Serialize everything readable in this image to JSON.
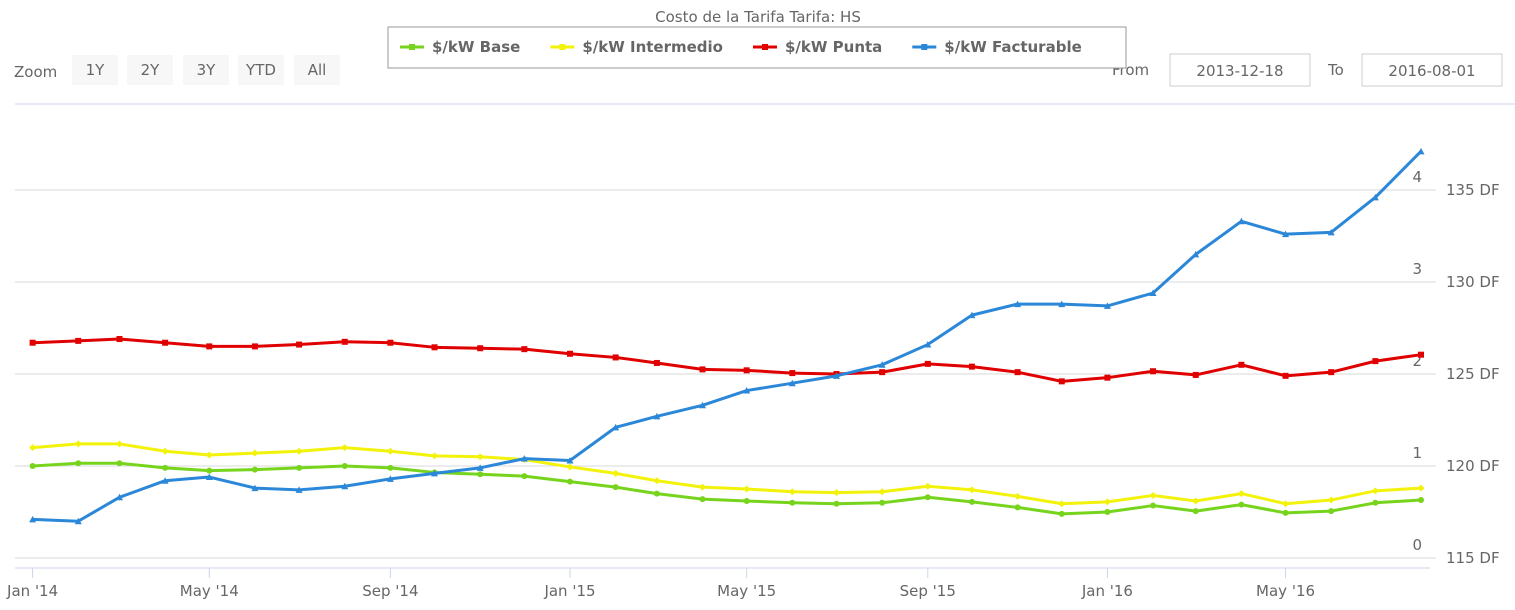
{
  "chart_data": {
    "type": "line",
    "title": "Costo de la Tarifa Tarifa: HS",
    "zoom_label": "Zoom",
    "zoom_buttons": [
      "1Y",
      "2Y",
      "3Y",
      "YTD",
      "All"
    ],
    "from_label": "From",
    "to_label": "To",
    "x": [
      "2014-01",
      "2014-02",
      "2014-03",
      "2014-04",
      "2014-05",
      "2014-06",
      "2014-07",
      "2014-08",
      "2014-09",
      "2014-10",
      "2014-11",
      "2014-12",
      "2015-01",
      "2015-02",
      "2015-03",
      "2015-04",
      "2015-05",
      "2015-06",
      "2015-07",
      "2015-08",
      "2015-09",
      "2015-10",
      "2015-11",
      "2015-12",
      "2016-01",
      "2016-02",
      "2016-03",
      "2016-04",
      "2016-05",
      "2016-06",
      "2016-07",
      "2016-08"
    ],
    "xlim": [
      "2013-12-18",
      "2016-08-01"
    ],
    "xticks": [
      {
        "value": "2014-01",
        "label": "Jan '14"
      },
      {
        "value": "2014-05",
        "label": "May '14"
      },
      {
        "value": "2014-09",
        "label": "Sep '14"
      },
      {
        "value": "2015-01",
        "label": "Jan '15"
      },
      {
        "value": "2015-05",
        "label": "May '15"
      },
      {
        "value": "2015-09",
        "label": "Sep '15"
      },
      {
        "value": "2016-01",
        "label": "Jan '16"
      },
      {
        "value": "2016-05",
        "label": "May '16"
      }
    ],
    "ylim": [
      0,
      5
    ],
    "yticks": [
      0,
      1,
      2,
      3,
      4
    ],
    "y2lim": [
      115,
      140
    ],
    "y2ticks": [
      {
        "value": 115,
        "label": "115 DF"
      },
      {
        "value": 120,
        "label": "120 DF"
      },
      {
        "value": 125,
        "label": "125 DF"
      },
      {
        "value": 130,
        "label": "130 DF"
      },
      {
        "value": 135,
        "label": "135 DF"
      }
    ],
    "grid": true,
    "legend": "top",
    "series": [
      {
        "name": "$/kW Base",
        "color": "#77d41c",
        "marker": "circle",
        "values": [
          1.0,
          1.03,
          1.03,
          0.98,
          0.95,
          0.96,
          0.98,
          1.0,
          0.98,
          0.93,
          0.91,
          0.89,
          0.83,
          0.77,
          0.7,
          0.64,
          0.62,
          0.6,
          0.59,
          0.6,
          0.66,
          0.61,
          0.55,
          0.48,
          0.5,
          0.57,
          0.51,
          0.58,
          0.49,
          0.51,
          0.6,
          0.63
        ]
      },
      {
        "name": "$/kW Intermedio",
        "color": "#f2f20a",
        "marker": "diamond",
        "values": [
          1.2,
          1.24,
          1.24,
          1.16,
          1.12,
          1.14,
          1.16,
          1.2,
          1.16,
          1.11,
          1.1,
          1.07,
          0.99,
          0.92,
          0.84,
          0.77,
          0.75,
          0.72,
          0.71,
          0.72,
          0.78,
          0.74,
          0.67,
          0.59,
          0.61,
          0.68,
          0.62,
          0.7,
          0.59,
          0.63,
          0.73,
          0.76
        ]
      },
      {
        "name": "$/kW Punta",
        "color": "#e00000",
        "marker": "square",
        "values": [
          2.34,
          2.36,
          2.38,
          2.34,
          2.3,
          2.3,
          2.32,
          2.35,
          2.34,
          2.29,
          2.28,
          2.27,
          2.22,
          2.18,
          2.12,
          2.05,
          2.04,
          2.01,
          2.0,
          2.02,
          2.11,
          2.08,
          2.02,
          1.92,
          1.96,
          2.03,
          1.99,
          2.1,
          1.98,
          2.02,
          2.14,
          2.21
        ]
      },
      {
        "name": "$/kW Facturable",
        "color": "#2b87d8",
        "marker": "triangle",
        "axis": "y2",
        "values": [
          117.1,
          117.0,
          118.3,
          119.2,
          119.4,
          118.8,
          118.7,
          118.9,
          119.3,
          119.6,
          119.9,
          120.4,
          120.3,
          122.1,
          122.7,
          123.3,
          124.1,
          124.5,
          124.9,
          125.5,
          126.6,
          128.2,
          128.8,
          128.8,
          128.7,
          129.4,
          131.5,
          133.3,
          132.6,
          132.7,
          134.6,
          137.1
        ]
      }
    ]
  }
}
